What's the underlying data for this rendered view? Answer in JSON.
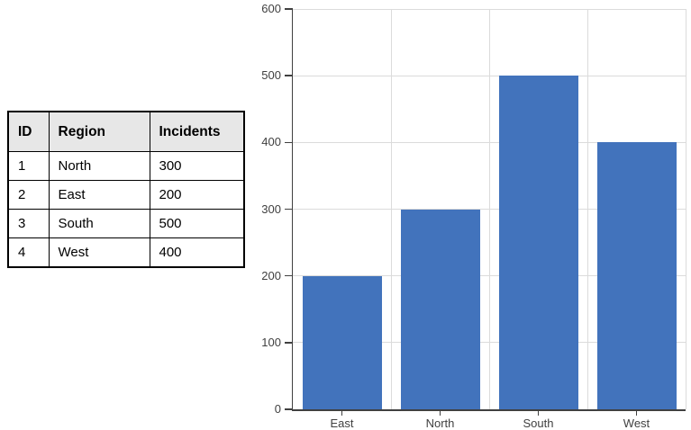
{
  "table": {
    "headers": [
      "ID",
      "Region",
      "Incidents"
    ],
    "rows": [
      [
        "1",
        "North",
        "300"
      ],
      [
        "2",
        "East",
        "200"
      ],
      [
        "3",
        "South",
        "500"
      ],
      [
        "4",
        "West",
        "400"
      ]
    ]
  },
  "chart_data": {
    "type": "bar",
    "categories": [
      "East",
      "North",
      "South",
      "West"
    ],
    "values": [
      200,
      300,
      500,
      400
    ],
    "title": "",
    "xlabel": "",
    "ylabel": "",
    "ylim": [
      0,
      600
    ],
    "ytick_step": 100,
    "ytick_labels": [
      "0",
      "100",
      "200",
      "300",
      "400",
      "500",
      "600"
    ],
    "grid": true,
    "legend": "none",
    "bar_color": "#4273BC",
    "gridline_color": "#DBDBDB",
    "axis_color": "#404040",
    "label_color": "#404040"
  }
}
